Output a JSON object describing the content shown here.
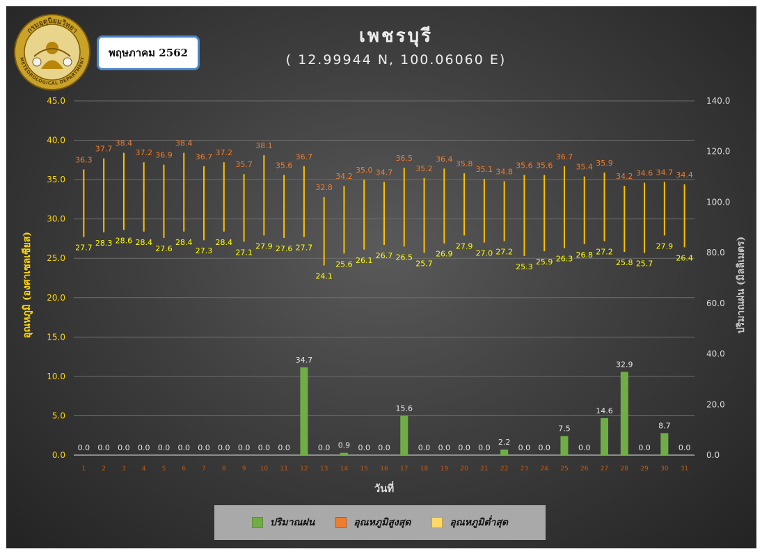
{
  "header": {
    "month_label": "พฤษภาคม 2562",
    "title": "เพชรบุรี",
    "subtitle": "( 12.99944 N, 100.06060 E)",
    "logo_text": "กรมอุตุนิยมวิทยา",
    "logo_subtext": "METEOROLOGICAL DEPARTMENT"
  },
  "colors": {
    "rain": "#70ad47",
    "max_temp": "#ed7d31",
    "min_temp": "#ffd966",
    "temp_range_line": "#ffc000",
    "axis_text": "#d9d9d9",
    "left_axis_title": "#ffd700",
    "right_axis_title": "#c8c8c8",
    "x_tick": "#c55a11"
  },
  "legend": {
    "rain": "ปริมาณฝน",
    "max_temp": "อุณหภูมิสูงสุด",
    "min_temp": "อุณหภูมิต่ำสุด"
  },
  "chart_data": {
    "type": "bar",
    "xlabel": "วันที่",
    "ylabel_left": "อุณหภูมิ (องศาเซลเซียส)",
    "ylabel_right": "ปริมาณฝน (มิลลิเมตร)",
    "ylim_left": [
      0,
      45
    ],
    "yticks_left": [
      "0.0",
      "5.0",
      "10.0",
      "15.0",
      "20.0",
      "25.0",
      "30.0",
      "35.0",
      "40.0",
      "45.0"
    ],
    "ylim_right": [
      0,
      140
    ],
    "yticks_right": [
      "0.0",
      "20.0",
      "40.0",
      "60.0",
      "80.0",
      "100.0",
      "120.0",
      "140.0"
    ],
    "grid": true,
    "legend_position": "bottom",
    "categories": [
      "1",
      "2",
      "3",
      "4",
      "5",
      "6",
      "7",
      "8",
      "9",
      "10",
      "11",
      "12",
      "13",
      "14",
      "15",
      "16",
      "17",
      "18",
      "19",
      "20",
      "21",
      "22",
      "23",
      "24",
      "25",
      "26",
      "27",
      "28",
      "29",
      "30",
      "31"
    ],
    "series": [
      {
        "name": "ปริมาณฝน",
        "axis": "right",
        "kind": "bar",
        "values": [
          0.0,
          0.0,
          0.0,
          0.0,
          0.0,
          0.0,
          0.0,
          0.0,
          0.0,
          0.0,
          0.0,
          34.7,
          0.0,
          0.9,
          0.0,
          0.0,
          15.6,
          0.0,
          0.0,
          0.0,
          0.0,
          2.2,
          0.0,
          0.0,
          7.5,
          0.0,
          14.6,
          32.9,
          0.0,
          8.7,
          0.0
        ],
        "labels": [
          "0.0",
          "0.0",
          "0.0",
          "0.0",
          "0.0",
          "0.0",
          "0.0",
          "0.0",
          "0.0",
          "0.0",
          "0.0",
          "34.7",
          "0.0",
          "0.9",
          "0.0",
          "0.0",
          "15.6",
          "0.0",
          "0.0",
          "0.0",
          "0.0",
          "2.2",
          "0.0",
          "0.0",
          "7.5",
          "0.0",
          "14.6",
          "32.9",
          "0.0",
          "8.7",
          "0.0"
        ]
      },
      {
        "name": "อุณหภูมิสูงสุด",
        "axis": "left",
        "kind": "high",
        "values": [
          36.3,
          37.7,
          38.4,
          37.2,
          36.9,
          38.4,
          36.7,
          37.2,
          35.7,
          38.1,
          35.6,
          36.7,
          32.8,
          34.2,
          35.0,
          34.7,
          36.5,
          35.2,
          36.4,
          35.8,
          35.1,
          34.8,
          35.6,
          35.6,
          36.7,
          35.4,
          35.9,
          34.2,
          34.6,
          34.7,
          34.4
        ],
        "labels": [
          "36.3",
          "37.7",
          "38.4",
          "37.2",
          "36.9",
          "38.4",
          "36.7",
          "37.2",
          "35.7",
          "38.1",
          "35.6",
          "36.7",
          "32.8",
          "34.2",
          "35.0",
          "34.7",
          "36.5",
          "35.2",
          "36.4",
          "35.8",
          "35.1",
          "34.8",
          "35.6",
          "35.6",
          "36.7",
          "35.4",
          "35.9",
          "34.2",
          "34.6",
          "34.7",
          "34.4"
        ]
      },
      {
        "name": "อุณหภูมิต่ำสุด",
        "axis": "left",
        "kind": "low",
        "values": [
          27.7,
          28.3,
          28.6,
          28.4,
          27.6,
          28.4,
          27.3,
          28.4,
          27.1,
          27.9,
          27.6,
          27.7,
          24.1,
          25.6,
          26.1,
          26.7,
          26.5,
          25.7,
          26.9,
          27.9,
          27.0,
          27.2,
          25.3,
          25.9,
          26.3,
          26.8,
          27.2,
          25.8,
          25.7,
          27.9,
          26.4
        ],
        "labels": [
          "27.7",
          "28.3",
          "28.6",
          "28.4",
          "27.6",
          "28.4",
          "27.3",
          "28.4",
          "27.1",
          "27.9",
          "27.6",
          "27.7",
          "24.1",
          "25.6",
          "26.1",
          "26.7",
          "26.5",
          "25.7",
          "26.9",
          "27.9",
          "27.0",
          "27.2",
          "25.3",
          "25.9",
          "26.3",
          "26.8",
          "27.2",
          "25.8",
          "25.7",
          "27.9",
          "26.4"
        ]
      }
    ]
  }
}
